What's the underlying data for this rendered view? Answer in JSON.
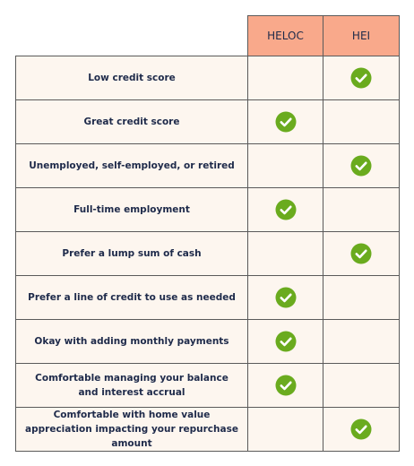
{
  "table": {
    "columns": [
      "HELOC",
      "HEI"
    ],
    "rows": [
      {
        "label": "Low credit score",
        "checks": [
          false,
          true
        ]
      },
      {
        "label": "Great credit score",
        "checks": [
          true,
          false
        ]
      },
      {
        "label": "Unemployed, self-employed, or retired",
        "checks": [
          false,
          true
        ]
      },
      {
        "label": "Full-time employment",
        "checks": [
          true,
          false
        ]
      },
      {
        "label": "Prefer a lump sum of cash",
        "checks": [
          false,
          true
        ]
      },
      {
        "label": "Prefer a line of credit to use as needed",
        "checks": [
          true,
          false
        ]
      },
      {
        "label": "Okay with adding monthly payments",
        "checks": [
          true,
          false
        ]
      },
      {
        "label": "Comfortable managing your balance and interest accrual",
        "checks": [
          true,
          false
        ]
      },
      {
        "label": "Comfortable with home value appreciation impacting your repurchase amount",
        "checks": [
          false,
          true
        ]
      }
    ]
  }
}
